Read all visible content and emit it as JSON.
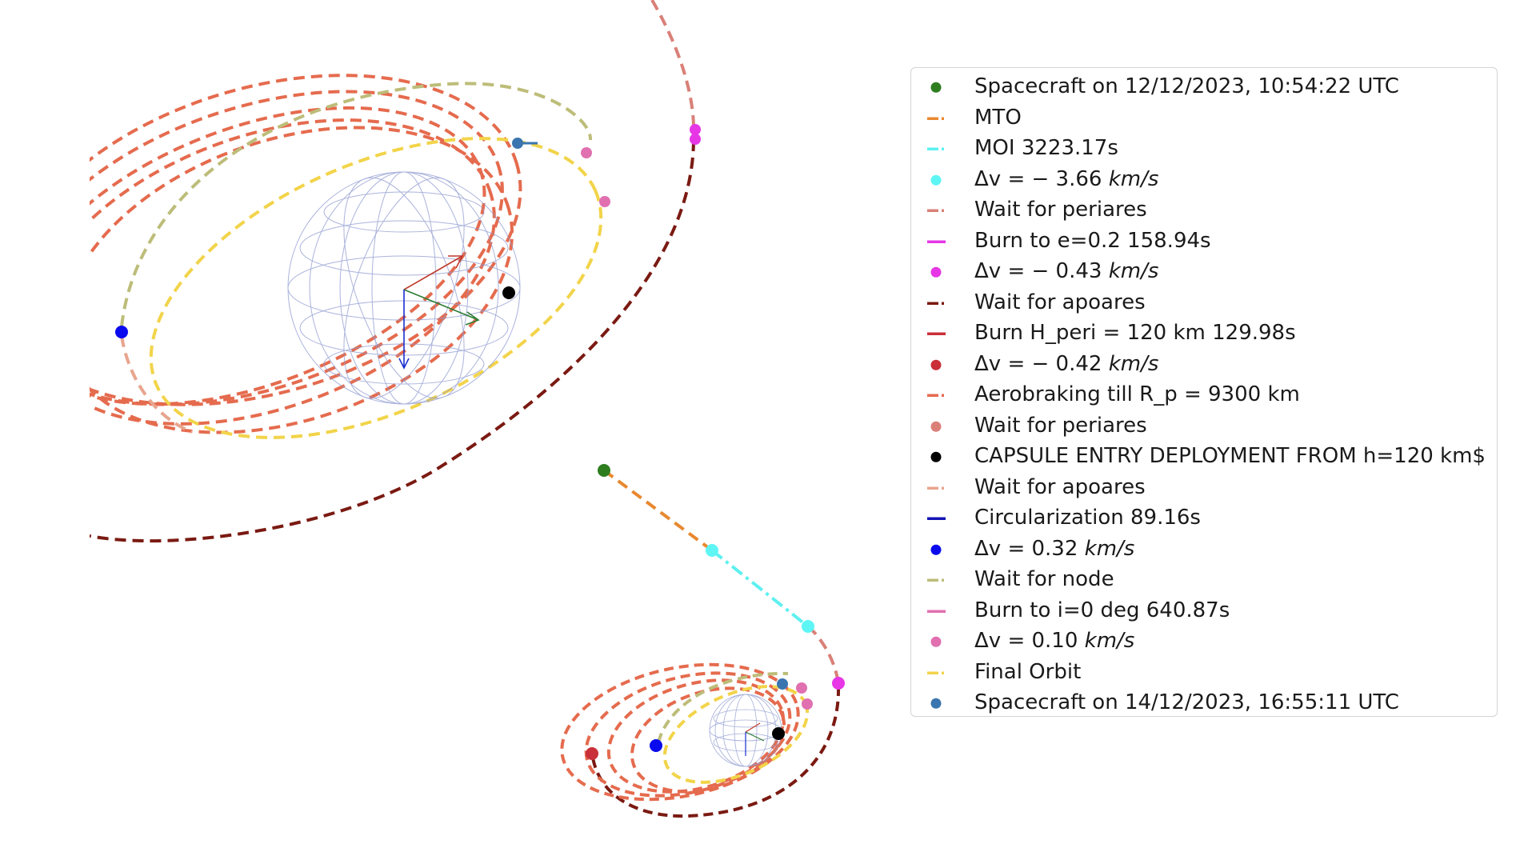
{
  "legend": {
    "items": [
      {
        "kind": "dot",
        "color": "#2e7d1f",
        "text": "Spacecraft on 12/12/2023, 10:54:22 UTC"
      },
      {
        "kind": "dash",
        "color": "#e8882f",
        "text": "MTO"
      },
      {
        "kind": "dash",
        "color": "#5ef0f0",
        "text": "MOI 3223.17s"
      },
      {
        "kind": "dot",
        "color": "#5ef5f5",
        "text": "Δv = − 3.66 ",
        "unit": "km/s"
      },
      {
        "kind": "dash",
        "color": "#d98078",
        "text": "Wait for periares"
      },
      {
        "kind": "line",
        "color": "#e636e6",
        "text": "Burn to e=0.2 158.94s"
      },
      {
        "kind": "dot",
        "color": "#e636e6",
        "text": "Δv = − 0.43 ",
        "unit": "km/s"
      },
      {
        "kind": "dash",
        "color": "#7a1a12",
        "text": "Wait for apoares"
      },
      {
        "kind": "line",
        "color": "#c9303a",
        "text": "Burn H_peri = 120 km 129.98s"
      },
      {
        "kind": "dot",
        "color": "#c9303a",
        "text": "Δv = − 0.42 ",
        "unit": "km/s"
      },
      {
        "kind": "dash",
        "color": "#e56b4e",
        "text": "Aerobraking till R_p = 9300 km"
      },
      {
        "kind": "dot",
        "color": "#db8079",
        "text": "Wait for periares"
      },
      {
        "kind": "dot",
        "color": "#000000",
        "text": "CAPSULE ENTRY DEPLOYMENT FROM h=120 km$"
      },
      {
        "kind": "dash",
        "color": "#e8a58e",
        "text": "Wait for apoares"
      },
      {
        "kind": "line",
        "color": "#1414b4",
        "text": "Circularization 89.16s"
      },
      {
        "kind": "dot",
        "color": "#0a0aee",
        "text": "Δv = 0.32 ",
        "unit": "km/s"
      },
      {
        "kind": "dash",
        "color": "#bdbd7a",
        "text": "Wait for node"
      },
      {
        "kind": "line",
        "color": "#e070b0",
        "text": "Burn to i=0 deg 640.87s"
      },
      {
        "kind": "dot",
        "color": "#e070b0",
        "text": "Δv = 0.10 ",
        "unit": "km/s"
      },
      {
        "kind": "dash",
        "color": "#f2d44a",
        "text": "Final Orbit"
      },
      {
        "kind": "dot",
        "color": "#3a75b0",
        "text": "Spacecraft on 14/12/2023, 16:55:11 UTC"
      }
    ]
  }
}
